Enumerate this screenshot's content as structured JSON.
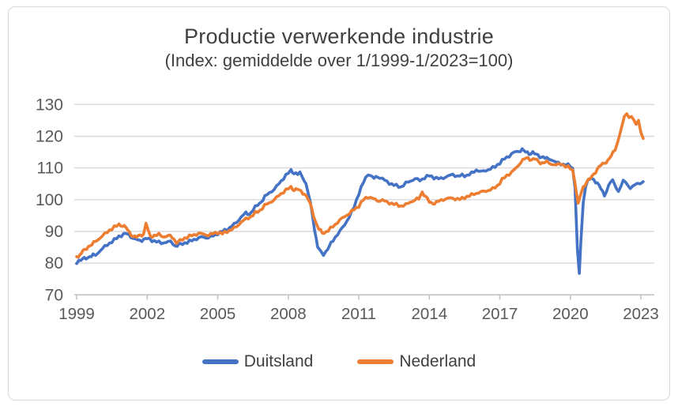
{
  "window": {
    "background": "#ffffff",
    "frame_border_color": "#d9d9d9"
  },
  "chart_data": {
    "type": "line",
    "title": "Productie verwerkende industrie",
    "subtitle": "(Index: gemiddelde over 1/1999-1/2023=100)",
    "xlabel": "",
    "ylabel": "",
    "x_axis": {
      "tick_labels": [
        "1999",
        "2002",
        "2005",
        "2008",
        "2011",
        "2014",
        "2017",
        "2020",
        "2023"
      ],
      "range": [
        1999,
        2023.2
      ]
    },
    "y_axis": {
      "tick_labels": [
        "70",
        "80",
        "90",
        "100",
        "110",
        "120",
        "130"
      ],
      "range": [
        70,
        130
      ],
      "gridlines": true
    },
    "legend": {
      "position": "bottom",
      "entries": [
        "Duitsland",
        "Nederland"
      ]
    },
    "colors": {
      "grid": "#d9d9d9",
      "axis": "#bfbfbf",
      "tick_text": "#595959",
      "title_text": "#404040"
    },
    "series": [
      {
        "name": "Duitsland",
        "color": "#4472c4",
        "points": [
          [
            1999.0,
            80.3
          ],
          [
            1999.1,
            80.8
          ],
          [
            1999.25,
            81.2
          ],
          [
            1999.4,
            81.6
          ],
          [
            1999.55,
            82.0
          ],
          [
            1999.7,
            82.6
          ],
          [
            1999.8,
            82.4
          ],
          [
            2000.0,
            84.0
          ],
          [
            2000.2,
            85.2
          ],
          [
            2000.4,
            86.3
          ],
          [
            2000.6,
            87.3
          ],
          [
            2000.8,
            88.4
          ],
          [
            2001.0,
            89.1
          ],
          [
            2001.15,
            89.3
          ],
          [
            2001.3,
            88.3
          ],
          [
            2001.5,
            87.5
          ],
          [
            2001.7,
            87.1
          ],
          [
            2001.85,
            87.5
          ],
          [
            2002.0,
            87.8
          ],
          [
            2002.2,
            87.2
          ],
          [
            2002.4,
            86.8
          ],
          [
            2002.6,
            86.3
          ],
          [
            2002.8,
            86.6
          ],
          [
            2003.0,
            86.8
          ],
          [
            2003.2,
            85.4
          ],
          [
            2003.35,
            85.8
          ],
          [
            2003.5,
            86.1
          ],
          [
            2003.7,
            86.6
          ],
          [
            2003.9,
            87.1
          ],
          [
            2004.1,
            87.7
          ],
          [
            2004.3,
            88.2
          ],
          [
            2004.5,
            88.0
          ],
          [
            2004.7,
            88.3
          ],
          [
            2004.9,
            88.8
          ],
          [
            2005.0,
            89.4
          ],
          [
            2005.2,
            90.0
          ],
          [
            2005.4,
            90.6
          ],
          [
            2005.6,
            91.7
          ],
          [
            2005.8,
            92.8
          ],
          [
            2006.0,
            94.6
          ],
          [
            2006.2,
            95.8
          ],
          [
            2006.35,
            95.4
          ],
          [
            2006.5,
            96.8
          ],
          [
            2006.7,
            98.4
          ],
          [
            2006.85,
            99.3
          ],
          [
            2007.0,
            100.9
          ],
          [
            2007.2,
            102.2
          ],
          [
            2007.4,
            103.2
          ],
          [
            2007.6,
            105.0
          ],
          [
            2007.8,
            106.8
          ],
          [
            2008.0,
            108.4
          ],
          [
            2008.12,
            109.3
          ],
          [
            2008.25,
            108.4
          ],
          [
            2008.4,
            108.0
          ],
          [
            2008.5,
            108.4
          ],
          [
            2008.62,
            107.2
          ],
          [
            2008.75,
            104.9
          ],
          [
            2008.87,
            101.5
          ],
          [
            2009.0,
            96.5
          ],
          [
            2009.12,
            90.5
          ],
          [
            2009.25,
            85.3
          ],
          [
            2009.4,
            83.2
          ],
          [
            2009.5,
            82.8
          ],
          [
            2009.6,
            83.6
          ],
          [
            2009.75,
            85.4
          ],
          [
            2009.9,
            87.0
          ],
          [
            2010.0,
            88.2
          ],
          [
            2010.2,
            90.1
          ],
          [
            2010.4,
            92.1
          ],
          [
            2010.6,
            94.7
          ],
          [
            2010.8,
            97.6
          ],
          [
            2011.0,
            102.0
          ],
          [
            2011.2,
            105.5
          ],
          [
            2011.4,
            108.2
          ],
          [
            2011.5,
            107.5
          ],
          [
            2011.65,
            106.8
          ],
          [
            2011.8,
            107.2
          ],
          [
            2012.0,
            106.7
          ],
          [
            2012.2,
            105.6
          ],
          [
            2012.4,
            104.9
          ],
          [
            2012.6,
            104.4
          ],
          [
            2012.8,
            104.0
          ],
          [
            2013.0,
            105.2
          ],
          [
            2013.2,
            105.9
          ],
          [
            2013.4,
            106.6
          ],
          [
            2013.6,
            106.1
          ],
          [
            2013.8,
            106.9
          ],
          [
            2014.0,
            107.6
          ],
          [
            2014.2,
            107.0
          ],
          [
            2014.4,
            106.6
          ],
          [
            2014.6,
            106.9
          ],
          [
            2014.8,
            107.4
          ],
          [
            2015.0,
            108.0
          ],
          [
            2015.2,
            107.3
          ],
          [
            2015.4,
            107.7
          ],
          [
            2015.6,
            107.6
          ],
          [
            2015.8,
            108.3
          ],
          [
            2016.0,
            109.4
          ],
          [
            2016.2,
            108.8
          ],
          [
            2016.4,
            109.2
          ],
          [
            2016.6,
            109.7
          ],
          [
            2016.8,
            110.4
          ],
          [
            2017.0,
            111.6
          ],
          [
            2017.2,
            112.9
          ],
          [
            2017.4,
            113.8
          ],
          [
            2017.6,
            114.9
          ],
          [
            2017.8,
            115.3
          ],
          [
            2017.95,
            115.8
          ],
          [
            2018.1,
            115.0
          ],
          [
            2018.25,
            114.5
          ],
          [
            2018.4,
            114.9
          ],
          [
            2018.55,
            114.2
          ],
          [
            2018.7,
            113.6
          ],
          [
            2018.85,
            113.4
          ],
          [
            2019.0,
            113.0
          ],
          [
            2019.2,
            112.6
          ],
          [
            2019.4,
            111.8
          ],
          [
            2019.6,
            111.2
          ],
          [
            2019.8,
            111.1
          ],
          [
            2020.0,
            110.6
          ],
          [
            2020.1,
            109.8
          ],
          [
            2020.2,
            104.0
          ],
          [
            2020.3,
            84.0
          ],
          [
            2020.38,
            76.6
          ],
          [
            2020.45,
            87.0
          ],
          [
            2020.55,
            99.0
          ],
          [
            2020.65,
            104.5
          ],
          [
            2020.75,
            105.9
          ],
          [
            2020.9,
            106.8
          ],
          [
            2021.0,
            106.3
          ],
          [
            2021.15,
            105.2
          ],
          [
            2021.3,
            103.5
          ],
          [
            2021.45,
            101.3
          ],
          [
            2021.55,
            103.0
          ],
          [
            2021.7,
            105.5
          ],
          [
            2021.8,
            105.9
          ],
          [
            2021.9,
            104.8
          ],
          [
            2022.05,
            102.4
          ],
          [
            2022.15,
            104.3
          ],
          [
            2022.25,
            105.7
          ],
          [
            2022.35,
            105.9
          ],
          [
            2022.45,
            104.4
          ],
          [
            2022.55,
            103.7
          ],
          [
            2022.65,
            103.9
          ],
          [
            2022.75,
            104.8
          ],
          [
            2022.85,
            105.3
          ],
          [
            2022.95,
            105.1
          ],
          [
            2023.1,
            105.7
          ]
        ]
      },
      {
        "name": "Nederland",
        "color": "#ed7d31",
        "points": [
          [
            1999.0,
            82.5
          ],
          [
            1999.07,
            81.8
          ],
          [
            1999.2,
            83.3
          ],
          [
            1999.35,
            84.2
          ],
          [
            1999.5,
            85.2
          ],
          [
            1999.65,
            85.9
          ],
          [
            1999.8,
            86.8
          ],
          [
            2000.0,
            88.0
          ],
          [
            2000.2,
            89.2
          ],
          [
            2000.4,
            90.4
          ],
          [
            2000.6,
            91.3
          ],
          [
            2000.8,
            92.2
          ],
          [
            2000.95,
            91.8
          ],
          [
            2001.1,
            91.2
          ],
          [
            2001.25,
            89.6
          ],
          [
            2001.4,
            88.4
          ],
          [
            2001.55,
            88.2
          ],
          [
            2001.7,
            88.8
          ],
          [
            2001.85,
            89.2
          ],
          [
            2001.95,
            92.6
          ],
          [
            2002.05,
            90.0
          ],
          [
            2002.15,
            88.4
          ],
          [
            2002.3,
            88.7
          ],
          [
            2002.5,
            89.0
          ],
          [
            2002.7,
            88.3
          ],
          [
            2002.9,
            88.6
          ],
          [
            2003.05,
            88.3
          ],
          [
            2003.25,
            86.5
          ],
          [
            2003.4,
            87.0
          ],
          [
            2003.6,
            87.9
          ],
          [
            2003.8,
            88.5
          ],
          [
            2004.0,
            88.9
          ],
          [
            2004.2,
            89.4
          ],
          [
            2004.4,
            89.1
          ],
          [
            2004.6,
            88.8
          ],
          [
            2004.8,
            89.3
          ],
          [
            2005.0,
            89.7
          ],
          [
            2005.2,
            89.3
          ],
          [
            2005.4,
            90.0
          ],
          [
            2005.6,
            90.6
          ],
          [
            2005.8,
            91.5
          ],
          [
            2006.0,
            93.0
          ],
          [
            2006.2,
            93.9
          ],
          [
            2006.4,
            94.6
          ],
          [
            2006.6,
            95.8
          ],
          [
            2006.8,
            96.6
          ],
          [
            2007.0,
            98.2
          ],
          [
            2007.2,
            99.0
          ],
          [
            2007.4,
            100.0
          ],
          [
            2007.6,
            101.3
          ],
          [
            2007.8,
            102.5
          ],
          [
            2008.0,
            103.5
          ],
          [
            2008.12,
            104.0
          ],
          [
            2008.25,
            103.1
          ],
          [
            2008.4,
            103.3
          ],
          [
            2008.55,
            102.5
          ],
          [
            2008.7,
            101.8
          ],
          [
            2008.85,
            100.2
          ],
          [
            2009.0,
            97.2
          ],
          [
            2009.15,
            93.2
          ],
          [
            2009.3,
            90.8
          ],
          [
            2009.45,
            89.5
          ],
          [
            2009.6,
            89.8
          ],
          [
            2009.8,
            90.9
          ],
          [
            2010.0,
            92.2
          ],
          [
            2010.2,
            93.6
          ],
          [
            2010.4,
            94.7
          ],
          [
            2010.6,
            95.7
          ],
          [
            2010.8,
            96.9
          ],
          [
            2011.0,
            98.0
          ],
          [
            2011.2,
            100.0
          ],
          [
            2011.4,
            100.9
          ],
          [
            2011.6,
            100.4
          ],
          [
            2011.8,
            99.6
          ],
          [
            2012.0,
            99.9
          ],
          [
            2012.2,
            99.2
          ],
          [
            2012.4,
            98.8
          ],
          [
            2012.6,
            98.4
          ],
          [
            2012.8,
            98.0
          ],
          [
            2013.0,
            98.4
          ],
          [
            2013.2,
            99.3
          ],
          [
            2013.4,
            99.9
          ],
          [
            2013.55,
            100.3
          ],
          [
            2013.7,
            102.4
          ],
          [
            2013.85,
            100.9
          ],
          [
            2014.0,
            99.3
          ],
          [
            2014.15,
            98.8
          ],
          [
            2014.3,
            99.2
          ],
          [
            2014.5,
            99.8
          ],
          [
            2014.7,
            100.3
          ],
          [
            2014.9,
            100.5
          ],
          [
            2015.1,
            100.3
          ],
          [
            2015.3,
            100.1
          ],
          [
            2015.5,
            100.7
          ],
          [
            2015.7,
            101.2
          ],
          [
            2015.9,
            101.8
          ],
          [
            2016.1,
            102.2
          ],
          [
            2016.3,
            102.6
          ],
          [
            2016.5,
            102.9
          ],
          [
            2016.7,
            103.4
          ],
          [
            2016.9,
            104.4
          ],
          [
            2017.1,
            106.3
          ],
          [
            2017.3,
            107.6
          ],
          [
            2017.5,
            108.6
          ],
          [
            2017.7,
            110.0
          ],
          [
            2017.9,
            111.9
          ],
          [
            2018.05,
            112.9
          ],
          [
            2018.2,
            113.1
          ],
          [
            2018.35,
            112.6
          ],
          [
            2018.5,
            112.9
          ],
          [
            2018.65,
            111.9
          ],
          [
            2018.8,
            111.6
          ],
          [
            2019.0,
            111.9
          ],
          [
            2019.2,
            111.2
          ],
          [
            2019.4,
            110.9
          ],
          [
            2019.6,
            111.4
          ],
          [
            2019.8,
            110.5
          ],
          [
            2020.0,
            109.9
          ],
          [
            2020.1,
            109.3
          ],
          [
            2020.2,
            105.5
          ],
          [
            2020.33,
            98.4
          ],
          [
            2020.45,
            102.0
          ],
          [
            2020.55,
            104.0
          ],
          [
            2020.7,
            105.6
          ],
          [
            2020.85,
            106.7
          ],
          [
            2021.0,
            108.1
          ],
          [
            2021.15,
            109.6
          ],
          [
            2021.3,
            110.9
          ],
          [
            2021.45,
            111.6
          ],
          [
            2021.6,
            112.3
          ],
          [
            2021.75,
            113.9
          ],
          [
            2021.9,
            115.8
          ],
          [
            2022.0,
            117.9
          ],
          [
            2022.1,
            120.5
          ],
          [
            2022.2,
            123.2
          ],
          [
            2022.3,
            126.2
          ],
          [
            2022.4,
            127.4
          ],
          [
            2022.5,
            125.8
          ],
          [
            2022.6,
            126.3
          ],
          [
            2022.7,
            124.7
          ],
          [
            2022.8,
            124.1
          ],
          [
            2022.9,
            124.9
          ],
          [
            2023.0,
            121.5
          ],
          [
            2023.1,
            119.3
          ]
        ]
      }
    ]
  }
}
